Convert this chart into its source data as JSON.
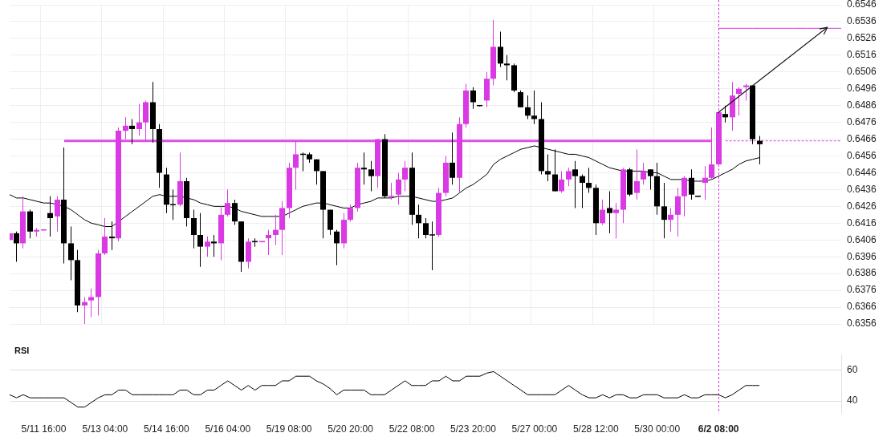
{
  "chart_data": [
    {
      "type": "candlestick",
      "categories": [
        null,
        null,
        null,
        null,
        null,
        "5/11 16:00",
        null,
        null,
        null,
        null,
        null,
        null,
        null,
        null,
        "5/13 04:00",
        null,
        null,
        null,
        null,
        null,
        null,
        null,
        null,
        "5/14 16:00",
        null,
        null,
        null,
        null,
        null,
        null,
        null,
        null,
        "5/16 04:00",
        null,
        null,
        null,
        null,
        null,
        null,
        null,
        null,
        "5/19 08:00",
        null,
        null,
        null,
        null,
        null,
        null,
        null,
        null,
        "5/20 20:00",
        null,
        null,
        null,
        null,
        null,
        null,
        null,
        null,
        "5/22 08:00",
        null,
        null,
        null,
        null,
        null,
        null,
        null,
        null,
        "5/23 20:00",
        null,
        null,
        null,
        null,
        null,
        null,
        null,
        null,
        "5/27 00:00",
        null,
        null,
        null,
        null,
        null,
        null,
        null,
        null,
        "5/28 12:00",
        null,
        null,
        null,
        null,
        null,
        null,
        null,
        null,
        "5/30 00:00",
        null,
        null,
        null,
        null,
        null,
        null,
        null,
        null,
        "6/2 08:00",
        null,
        null,
        null,
        null,
        null,
        null,
        null,
        null,
        null,
        null,
        null,
        null,
        null,
        null,
        null,
        null,
        null,
        null
      ],
      "series": [
        {
          "ohlc": [
            [
              0.6406,
              0.641,
              0.6406,
              0.641
            ],
            [
              0.641,
              0.6411,
              0.6393,
              0.6404
            ],
            [
              0.6404,
              0.6432,
              0.6401,
              0.6423
            ],
            [
              0.6423,
              0.6424,
              0.6407,
              0.6411
            ],
            [
              0.6411,
              0.6413,
              0.6408,
              0.6412
            ],
            [
              0.6412,
              0.6412,
              0.6412,
              0.6412
            ],
            [
              0.6422,
              0.6432,
              0.6408,
              0.6419
            ],
            [
              0.642,
              0.6432,
              0.6411,
              0.643
            ],
            [
              0.643,
              0.6461,
              0.6392,
              0.6404
            ],
            [
              0.6404,
              0.6414,
              0.6382,
              0.6394
            ],
            [
              0.6394,
              0.64,
              0.6363,
              0.6367
            ],
            [
              0.6367,
              0.6372,
              0.6356,
              0.6369
            ],
            [
              0.637,
              0.6377,
              0.636,
              0.6372
            ],
            [
              0.6372,
              0.64,
              0.6361,
              0.6398
            ],
            [
              0.6398,
              0.6419,
              0.6397,
              0.6408
            ],
            [
              0.6408,
              0.6417,
              0.64,
              0.6407
            ],
            [
              0.6407,
              0.6473,
              0.6405,
              0.6471
            ],
            [
              0.6471,
              0.6479,
              0.6466,
              0.6474
            ],
            [
              0.6474,
              0.6478,
              0.6463,
              0.6472
            ],
            [
              0.6472,
              0.6487,
              0.6468,
              0.6476
            ],
            [
              0.6476,
              0.6489,
              0.6465,
              0.6488
            ],
            [
              0.6488,
              0.65,
              0.6464,
              0.6472
            ],
            [
              0.6472,
              0.6475,
              0.6437,
              0.6446
            ],
            [
              0.6445,
              0.6449,
              0.6422,
              0.6427
            ],
            [
              0.6427,
              0.6436,
              0.6418,
              0.6427
            ],
            [
              0.6427,
              0.6458,
              0.6426,
              0.6441
            ],
            [
              0.6441,
              0.6443,
              0.6414,
              0.6419
            ],
            [
              0.6419,
              0.6424,
              0.6401,
              0.6409
            ],
            [
              0.6409,
              0.6422,
              0.639,
              0.6402
            ],
            [
              0.6402,
              0.6408,
              0.6396,
              0.6405
            ],
            [
              0.6405,
              0.6409,
              0.6396,
              0.6404
            ],
            [
              0.6404,
              0.6426,
              0.6394,
              0.6421
            ],
            [
              0.6421,
              0.6436,
              0.642,
              0.6428
            ],
            [
              0.6428,
              0.643,
              0.6415,
              0.6417
            ],
            [
              0.6417,
              0.6417,
              0.6387,
              0.6393
            ],
            [
              0.6393,
              0.6407,
              0.6389,
              0.6405
            ],
            [
              0.6405,
              0.6407,
              0.6402,
              0.6405
            ],
            [
              0.6405,
              0.6405,
              0.6405,
              0.6405
            ],
            [
              0.6407,
              0.6412,
              0.6397,
              0.6409
            ],
            [
              0.6409,
              0.6421,
              0.6403,
              0.6412
            ],
            [
              0.6412,
              0.6429,
              0.6397,
              0.6425
            ],
            [
              0.6425,
              0.6452,
              0.6419,
              0.6449
            ],
            [
              0.6449,
              0.6465,
              0.6436,
              0.6457
            ],
            [
              0.6457,
              0.6458,
              0.6447,
              0.6457
            ],
            [
              0.6457,
              0.6458,
              0.6452,
              0.6454
            ],
            [
              0.6454,
              0.6454,
              0.6439,
              0.6447
            ],
            [
              0.6447,
              0.6447,
              0.6407,
              0.6424
            ],
            [
              0.6424,
              0.6424,
              0.6409,
              0.6412
            ],
            [
              0.6411,
              0.6412,
              0.6391,
              0.6404
            ],
            [
              0.6404,
              0.6422,
              0.6401,
              0.6418
            ],
            [
              0.6418,
              0.6427,
              0.6417,
              0.6425
            ],
            [
              0.6425,
              0.6452,
              0.6423,
              0.6449
            ],
            [
              0.6449,
              0.6458,
              0.6439,
              0.6448
            ],
            [
              0.6448,
              0.6453,
              0.6435,
              0.6444
            ],
            [
              0.6444,
              0.6466,
              0.6437,
              0.6466
            ],
            [
              0.6466,
              0.6469,
              0.6431,
              0.6432
            ],
            [
              0.6432,
              0.644,
              0.643,
              0.6432
            ],
            [
              0.6433,
              0.6446,
              0.6427,
              0.6442
            ],
            [
              0.6442,
              0.6453,
              0.6435,
              0.6449
            ],
            [
              0.6449,
              0.6458,
              0.6415,
              0.6421
            ],
            [
              0.6421,
              0.6427,
              0.6407,
              0.6416
            ],
            [
              0.6416,
              0.6419,
              0.6407,
              0.6409
            ],
            [
              0.6409,
              0.6417,
              0.6388,
              0.6409
            ],
            [
              0.6409,
              0.6437,
              0.6408,
              0.6434
            ],
            [
              0.6434,
              0.6456,
              0.6432,
              0.6452
            ],
            [
              0.6452,
              0.647,
              0.6439,
              0.6443
            ],
            [
              0.6443,
              0.6479,
              0.6434,
              0.6475
            ],
            [
              0.6475,
              0.6499,
              0.6473,
              0.6495
            ],
            [
              0.6495,
              0.6497,
              0.6484,
              0.6488
            ],
            [
              0.6486,
              0.6486,
              0.6486,
              0.6486
            ],
            [
              0.6489,
              0.6506,
              0.6485,
              0.6502
            ],
            [
              0.6502,
              0.6537,
              0.6498,
              0.6521
            ],
            [
              0.6521,
              0.653,
              0.6509,
              0.6511
            ],
            [
              0.6511,
              0.6516,
              0.6501,
              0.651
            ],
            [
              0.651,
              0.6511,
              0.6494,
              0.6495
            ],
            [
              0.6494,
              0.6495,
              0.6485,
              0.6485
            ],
            [
              0.6485,
              0.6492,
              0.6478,
              0.648
            ],
            [
              0.648,
              0.6495,
              0.6475,
              0.6478
            ],
            [
              0.6478,
              0.6488,
              0.6445,
              0.6447
            ],
            [
              0.6447,
              0.6457,
              0.6441,
              0.6445
            ],
            [
              0.6445,
              0.646,
              0.6435,
              0.6435
            ],
            [
              0.6435,
              0.6447,
              0.6434,
              0.6442
            ],
            [
              0.6442,
              0.6449,
              0.6438,
              0.6447
            ],
            [
              0.6448,
              0.6453,
              0.6425,
              0.6444
            ],
            [
              0.6444,
              0.6445,
              0.6425,
              0.644
            ],
            [
              0.644,
              0.6449,
              0.6434,
              0.6437
            ],
            [
              0.6437,
              0.6439,
              0.6409,
              0.6416
            ],
            [
              0.6416,
              0.643,
              0.6415,
              0.6424
            ],
            [
              0.6425,
              0.6435,
              0.641,
              0.6422
            ],
            [
              0.6422,
              0.6428,
              0.6407,
              0.6424
            ],
            [
              0.6424,
              0.6449,
              0.6416,
              0.6448
            ],
            [
              0.6448,
              0.6449,
              0.6432,
              0.6433
            ],
            [
              0.6434,
              0.646,
              0.643,
              0.6441
            ],
            [
              0.6442,
              0.6452,
              0.6439,
              0.6447
            ],
            [
              0.6448,
              0.6448,
              0.6436,
              0.6444
            ],
            [
              0.6444,
              0.6452,
              0.6421,
              0.6426
            ],
            [
              0.6426,
              0.644,
              0.6407,
              0.6418
            ],
            [
              0.6418,
              0.6425,
              0.6411,
              0.6421
            ],
            [
              0.6421,
              0.6437,
              0.6408,
              0.6432
            ],
            [
              0.6432,
              0.6444,
              0.642,
              0.6443
            ],
            [
              0.6443,
              0.6448,
              0.643,
              0.6433
            ],
            [
              0.6432,
              0.6432,
              0.6432,
              0.6432
            ],
            [
              0.644,
              0.645,
              0.643,
              0.6443
            ],
            [
              0.6443,
              0.6473,
              0.6442,
              0.6451
            ],
            [
              0.6451,
              0.6482,
              0.6451,
              0.6482
            ],
            [
              0.6481,
              0.6486,
              0.6476,
              0.6479
            ],
            [
              0.6479,
              0.65,
              0.6471,
              0.6492
            ],
            [
              0.6493,
              0.6497,
              0.648,
              0.6496
            ],
            [
              0.6497,
              0.6499,
              0.6489,
              0.6498
            ],
            [
              0.6498,
              0.6498,
              0.6463,
              0.6466
            ],
            [
              0.6465,
              0.6468,
              0.6451,
              0.6463
            ],
            null,
            null,
            null,
            null,
            null,
            null,
            null,
            null,
            null,
            null,
            null,
            null
          ],
          "colors": [
            "#d93ae3",
            "#000000",
            "#d93ae3",
            "#000000",
            "#d93ae3",
            "#d93ae3",
            "#000000",
            "#d93ae3",
            "#000000",
            "#000000",
            "#000000",
            "#d93ae3",
            "#d93ae3",
            "#d93ae3",
            "#d93ae3",
            "#000000",
            "#d93ae3",
            "#d93ae3",
            "#000000",
            "#d93ae3",
            "#d93ae3",
            "#000000",
            "#000000",
            "#000000",
            "#000000",
            "#d93ae3",
            "#000000",
            "#000000",
            "#000000",
            "#d93ae3",
            "#000000",
            "#d93ae3",
            "#d93ae3",
            "#000000",
            "#000000",
            "#d93ae3",
            "#000000",
            "#d93ae3",
            "#d93ae3",
            "#d93ae3",
            "#d93ae3",
            "#d93ae3",
            "#d93ae3",
            "#000000",
            "#000000",
            "#000000",
            "#000000",
            "#000000",
            "#000000",
            "#d93ae3",
            "#d93ae3",
            "#d93ae3",
            "#000000",
            "#000000",
            "#d93ae3",
            "#000000",
            "#d93ae3",
            "#d93ae3",
            "#d93ae3",
            "#000000",
            "#000000",
            "#000000",
            "#000000",
            "#d93ae3",
            "#d93ae3",
            "#000000",
            "#d93ae3",
            "#d93ae3",
            "#000000",
            "#000000",
            "#d93ae3",
            "#d93ae3",
            "#000000",
            "#000000",
            "#000000",
            "#000000",
            "#000000",
            "#000000",
            "#000000",
            "#000000",
            "#000000",
            "#d93ae3",
            "#d93ae3",
            "#000000",
            "#000000",
            "#000000",
            "#000000",
            "#d93ae3",
            "#000000",
            "#d93ae3",
            "#d93ae3",
            "#000000",
            "#d93ae3",
            "#d93ae3",
            "#000000",
            "#000000",
            "#000000",
            "#d93ae3",
            "#d93ae3",
            "#d93ae3",
            "#000000",
            "#000000",
            "#d93ae3",
            "#d93ae3",
            "#d93ae3",
            "#000000",
            "#d93ae3",
            "#d93ae3",
            "#d93ae3",
            "#000000",
            "#000000",
            null,
            null,
            null,
            null,
            null,
            null,
            null,
            null,
            null,
            null,
            null,
            null
          ]
        },
        {
          "type": "line",
          "color": "#000000",
          "values": [
            0.6433,
            0.6431,
            0.6431,
            0.643,
            0.6429,
            0.6428,
            0.6428,
            0.6427,
            0.6426,
            0.6424,
            0.6421,
            0.6418,
            0.6416,
            0.6415,
            0.6414,
            0.6414,
            0.6417,
            0.642,
            0.6423,
            0.6426,
            0.6429,
            0.6432,
            0.6433,
            0.6432,
            0.6432,
            0.6432,
            0.6431,
            0.643,
            0.6428,
            0.6427,
            0.6426,
            0.6426,
            0.6426,
            0.6425,
            0.6423,
            0.6422,
            0.6421,
            0.642,
            0.642,
            0.642,
            0.642,
            0.6422,
            0.6424,
            0.6426,
            0.6427,
            0.6428,
            0.6428,
            0.6427,
            0.6426,
            0.6425,
            0.6425,
            0.6427,
            0.6428,
            0.6429,
            0.6431,
            0.6431,
            0.6431,
            0.6432,
            0.6432,
            0.6432,
            0.6431,
            0.643,
            0.6429,
            0.6429,
            0.643,
            0.6431,
            0.6434,
            0.6437,
            0.6439,
            0.6442,
            0.6445,
            0.6451,
            0.6454,
            0.6456,
            0.6458,
            0.646,
            0.6461,
            0.6462,
            0.6461,
            0.646,
            0.6459,
            0.6458,
            0.6457,
            0.6457,
            0.6456,
            0.6455,
            0.6453,
            0.6451,
            0.6449,
            0.6448,
            0.6447,
            0.6447,
            0.6447,
            0.6447,
            0.6446,
            0.6446,
            0.6444,
            0.6442,
            0.6442,
            0.6442,
            0.6441,
            0.6441,
            0.6441,
            0.6442,
            0.6444,
            0.6446,
            0.6448,
            0.6451,
            0.6453,
            0.6454,
            0.6455,
            null,
            null,
            null,
            null,
            null,
            null,
            null,
            null,
            null,
            null,
            null,
            null
          ]
        },
        {
          "type": "line",
          "color": "#df4fe8",
          "values": [
            null,
            null,
            null,
            null,
            null,
            null,
            null,
            null,
            0.6465,
            0.6465,
            0.6465,
            0.6465,
            0.6465,
            0.6465,
            0.6465,
            0.6465,
            0.6465,
            0.6465,
            0.6465,
            0.6465,
            0.6465,
            0.6465,
            0.6465,
            0.6465,
            0.6465,
            0.6465,
            0.6465,
            0.6465,
            0.6465,
            0.6465,
            0.6465,
            0.6465,
            0.6465,
            0.6465,
            0.6465,
            0.6465,
            0.6465,
            0.6465,
            0.6465,
            0.6465,
            0.6465,
            0.6465,
            0.6465,
            0.6465,
            0.6465,
            0.6465,
            0.6465,
            0.6465,
            0.6465,
            0.6465,
            0.6465,
            0.6465,
            0.6465,
            0.6465,
            0.6465,
            0.6465,
            0.6465,
            0.6465,
            0.6465,
            0.6465,
            0.6465,
            0.6465,
            0.6465,
            0.6465,
            0.6465,
            0.6465,
            0.6465,
            0.6465,
            0.6465,
            0.6465,
            0.6465,
            0.6465,
            0.6465,
            0.6465,
            0.6465,
            0.6465,
            0.6465,
            0.6465,
            0.6465,
            0.6465,
            0.6465,
            0.6465,
            0.6465,
            0.6465,
            0.6465,
            0.6465,
            0.6465,
            0.6465,
            0.6465,
            0.6465,
            0.6465,
            0.6465,
            0.6465,
            0.6465,
            0.6465,
            0.6465,
            0.6465,
            0.6465,
            0.6465,
            0.6465,
            0.6465,
            0.6465,
            0.6465,
            0.6465,
            null,
            null,
            null,
            null,
            null,
            null,
            null,
            null,
            null,
            null,
            null,
            null,
            null,
            null,
            null,
            null,
            null,
            null,
            null
          ]
        },
        {
          "type": "line",
          "color": "#d93ae3",
          "line_style": "dashed",
          "values": [
            null,
            null,
            null,
            null,
            null,
            null,
            null,
            null,
            null,
            null,
            null,
            null,
            null,
            null,
            null,
            null,
            null,
            null,
            null,
            null,
            null,
            null,
            null,
            null,
            null,
            null,
            null,
            null,
            null,
            null,
            null,
            null,
            null,
            null,
            null,
            null,
            null,
            null,
            null,
            null,
            null,
            null,
            null,
            null,
            null,
            null,
            null,
            null,
            null,
            null,
            null,
            null,
            null,
            null,
            null,
            null,
            null,
            null,
            null,
            null,
            null,
            null,
            null,
            null,
            null,
            null,
            null,
            null,
            null,
            null,
            null,
            null,
            null,
            null,
            null,
            null,
            null,
            null,
            null,
            null,
            null,
            null,
            null,
            null,
            null,
            null,
            null,
            null,
            null,
            null,
            null,
            null,
            null,
            null,
            null,
            null,
            null,
            null,
            null,
            null,
            null,
            null,
            null,
            null,
            null,
            0.6465,
            0.6465,
            0.6465,
            0.6465,
            0.6465,
            0.6465,
            0.6465,
            0.6465,
            0.6465,
            0.6465,
            0.6465,
            0.6465,
            0.6465,
            0.6465,
            0.6465,
            0.6465,
            0.6465,
            0.6465
          ]
        },
        {
          "type": "line",
          "color": "#d93ae3",
          "values": [
            null,
            null,
            null,
            null,
            null,
            null,
            null,
            null,
            null,
            null,
            null,
            null,
            null,
            null,
            null,
            null,
            null,
            null,
            null,
            null,
            null,
            null,
            null,
            null,
            null,
            null,
            null,
            null,
            null,
            null,
            null,
            null,
            null,
            null,
            null,
            null,
            null,
            null,
            null,
            null,
            null,
            null,
            null,
            null,
            null,
            null,
            null,
            null,
            null,
            null,
            null,
            null,
            null,
            null,
            null,
            null,
            null,
            null,
            null,
            null,
            null,
            null,
            null,
            null,
            null,
            null,
            null,
            null,
            null,
            null,
            null,
            null,
            null,
            null,
            null,
            null,
            null,
            null,
            null,
            null,
            null,
            null,
            null,
            null,
            null,
            null,
            null,
            null,
            null,
            null,
            null,
            null,
            null,
            null,
            null,
            null,
            null,
            null,
            null,
            null,
            null,
            null,
            null,
            null,
            0.6532,
            0.6532,
            0.6532,
            0.6532,
            0.6532,
            0.6532,
            0.6532,
            0.6532,
            0.6532,
            0.6532,
            0.6532,
            0.6532,
            0.6532,
            0.6532,
            0.6532,
            0.6532,
            0.6532,
            0.6532,
            0.6532
          ]
        }
      ],
      "ylim": [
        0.6356,
        0.6546
      ],
      "yticks": [
        0.6356,
        0.6366,
        0.6376,
        0.6386,
        0.6396,
        0.6406,
        0.6416,
        0.6426,
        0.6436,
        0.6446,
        0.6456,
        0.6466,
        0.6476,
        0.6486,
        0.6496,
        0.6506,
        0.6516,
        0.6526,
        0.6536,
        0.6546
      ],
      "grid": true,
      "tick_labels": "y",
      "ref_lines": [
        {
          "axis": "x",
          "value": "6/2 08:00",
          "color": "#d93ae3",
          "line_style": "dashed"
        }
      ]
    },
    {
      "type": "line",
      "title": "RSI",
      "categories": [
        null,
        null,
        null,
        null,
        null,
        "5/11 16:00",
        null,
        null,
        null,
        null,
        null,
        null,
        null,
        null,
        "5/13 04:00",
        null,
        null,
        null,
        null,
        null,
        null,
        null,
        null,
        "5/14 16:00",
        null,
        null,
        null,
        null,
        null,
        null,
        null,
        null,
        "5/16 04:00",
        null,
        null,
        null,
        null,
        null,
        null,
        null,
        null,
        "5/19 08:00",
        null,
        null,
        null,
        null,
        null,
        null,
        null,
        null,
        "5/20 20:00",
        null,
        null,
        null,
        null,
        null,
        null,
        null,
        null,
        "5/22 08:00",
        null,
        null,
        null,
        null,
        null,
        null,
        null,
        null,
        "5/23 20:00",
        null,
        null,
        null,
        null,
        null,
        null,
        null,
        null,
        "5/27 00:00",
        null,
        null,
        null,
        null,
        null,
        null,
        null,
        null,
        "5/28 12:00",
        null,
        null,
        null,
        null,
        null,
        null,
        null,
        null,
        "5/30 00:00",
        null,
        null,
        null,
        null,
        null,
        null,
        null,
        null,
        "6/2 08:00",
        null,
        null,
        null,
        null,
        null,
        null,
        null,
        null,
        null,
        null,
        null,
        null,
        null,
        null,
        null,
        null,
        null,
        null
      ],
      "color": "#000000",
      "values": [
        44,
        42,
        44,
        42,
        42,
        42,
        42,
        42,
        42,
        39,
        36,
        36,
        39,
        42,
        44,
        44,
        47,
        47,
        44,
        44,
        44,
        44,
        44,
        44,
        44,
        47,
        47,
        44,
        44,
        47,
        47,
        50,
        53,
        50,
        47,
        50,
        47,
        50,
        50,
        50,
        53,
        53,
        56,
        56,
        56,
        53,
        51,
        48,
        44,
        47,
        47,
        47,
        47,
        44,
        44,
        44,
        47,
        50,
        53,
        50,
        50,
        50,
        53,
        53,
        56,
        53,
        53,
        56,
        56,
        56,
        58,
        59,
        56,
        53,
        50,
        47,
        44,
        44,
        44,
        44,
        44,
        47,
        50,
        47,
        44,
        42,
        42,
        44,
        42,
        44,
        44,
        42,
        42,
        44,
        44,
        44,
        42,
        42,
        42,
        44,
        42,
        42,
        44,
        44,
        44,
        42,
        44,
        47,
        50,
        50,
        50,
        null,
        null,
        null,
        null,
        null,
        null,
        null,
        null,
        null,
        null,
        null,
        null
      ],
      "ylim": [
        32,
        70
      ],
      "yticks": [
        40,
        60
      ],
      "grid": "y",
      "ref_lines": [
        {
          "axis": "x",
          "value": "6/2 08:00",
          "color": "#d93ae3",
          "line_style": "dashed"
        }
      ]
    }
  ]
}
